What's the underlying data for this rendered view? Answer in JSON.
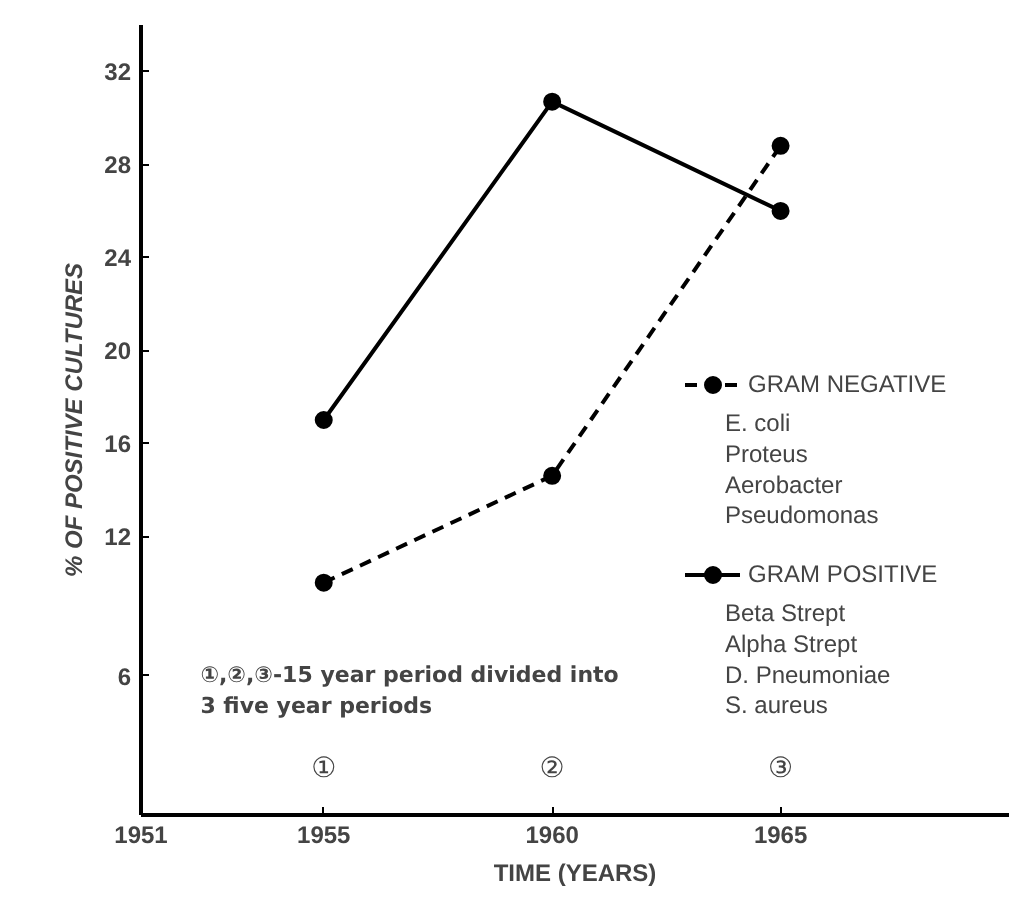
{
  "chart_data": {
    "type": "line",
    "xlabel": "TIME (YEARS)",
    "ylabel": "% OF POSITIVE CULTURES",
    "x": [
      1955,
      1960,
      1965
    ],
    "xlim": [
      1951,
      1970
    ],
    "xticks": [
      1951,
      1955,
      1960,
      1965
    ],
    "ylim": [
      0,
      34
    ],
    "yticks": [
      6,
      12,
      16,
      20,
      24,
      28,
      32
    ],
    "grid": false,
    "marker": "circle",
    "series": [
      {
        "name": "GRAM NEGATIVE",
        "color": "#000000",
        "line_style": "dashed",
        "values": [
          10,
          14.6,
          28.8
        ]
      },
      {
        "name": "GRAM POSITIVE",
        "color": "#000000",
        "line_style": "solid",
        "values": [
          17,
          30.7,
          26
        ]
      }
    ],
    "legend": "right",
    "annotations": [
      "E. coli\nProteus\nAerobacter\nPseudomonas",
      "Beta Strept\nAlpha Strept\nD. Pneumoniae\nS. aureus",
      "①,②,③-15 year period divided into\n3 five year periods",
      "①",
      "②",
      "③"
    ]
  }
}
